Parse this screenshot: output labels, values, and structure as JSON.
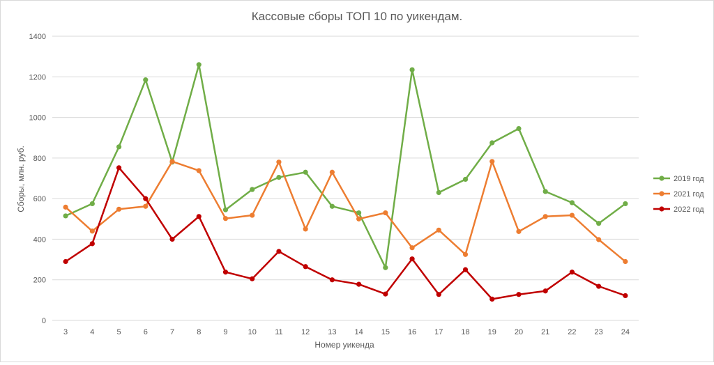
{
  "chart_data": {
    "type": "line",
    "title": "Кассовые сборы ТОП 10 по уикендам.",
    "xlabel": "Номер уикенда",
    "ylabel": "Сборы, млн. руб.",
    "ylim": [
      0,
      1400
    ],
    "yticks": [
      "0",
      "200",
      "400",
      "600",
      "800",
      "1000",
      "1200",
      "1400"
    ],
    "grid": "horizontal",
    "legend_position": "right",
    "categories": [
      "3",
      "4",
      "5",
      "6",
      "7",
      "8",
      "9",
      "10",
      "11",
      "12",
      "13",
      "14",
      "15",
      "16",
      "17",
      "18",
      "19",
      "20",
      "21",
      "22",
      "23",
      "24"
    ],
    "series": [
      {
        "name": "2019 год",
        "color": "#70ad47",
        "values": [
          515,
          575,
          855,
          1185,
          780,
          1260,
          545,
          645,
          705,
          730,
          562,
          530,
          260,
          1235,
          630,
          695,
          875,
          945,
          635,
          580,
          478,
          575
        ]
      },
      {
        "name": "2021 год",
        "color": "#ed7d31",
        "values": [
          558,
          440,
          548,
          562,
          783,
          738,
          502,
          518,
          780,
          450,
          730,
          500,
          530,
          358,
          445,
          325,
          783,
          438,
          512,
          518,
          398,
          290
        ]
      },
      {
        "name": "2022 год",
        "color": "#c00000",
        "values": [
          290,
          378,
          752,
          600,
          400,
          512,
          238,
          205,
          340,
          265,
          200,
          178,
          130,
          303,
          128,
          250,
          105,
          128,
          145,
          238,
          168,
          122
        ]
      }
    ]
  }
}
